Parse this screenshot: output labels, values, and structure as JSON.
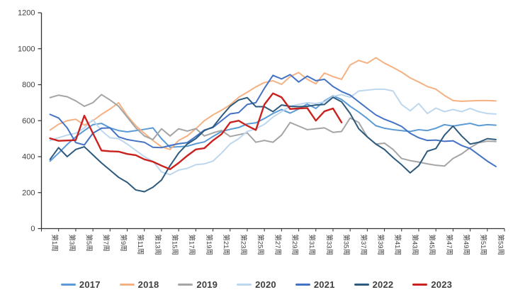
{
  "chart_data": {
    "type": "line",
    "title": "",
    "grid": "off",
    "legend_position": "bottom",
    "y_axis": {
      "min": 0,
      "max": 1200,
      "step": 200,
      "ticks": [
        0,
        200,
        400,
        600,
        800,
        1000,
        1200
      ]
    },
    "x_axis": {
      "weeks_total": 53,
      "label_every": 2,
      "tick_labels": [
        "第1周",
        "第3周",
        "第5周",
        "第7周",
        "第9周",
        "第11周",
        "第13周",
        "第15周",
        "第17周",
        "第19周",
        "第21周",
        "第23周",
        "第25周",
        "第27周",
        "第29周",
        "第31周",
        "第33周",
        "第35周",
        "第37周",
        "第39周",
        "第41周",
        "第43周",
        "第45周",
        "第47周",
        "第49周",
        "第51周",
        "第53周"
      ]
    },
    "series": [
      {
        "name": "2017",
        "color": "#5B9BD5",
        "values": [
          375,
          420,
          468,
          510,
          545,
          578,
          585,
          560,
          545,
          538,
          545,
          552,
          560,
          500,
          452,
          455,
          458,
          472,
          482,
          512,
          540,
          552,
          562,
          582,
          588,
          612,
          640,
          662,
          642,
          665,
          692,
          668,
          710,
          738,
          718,
          680,
          648,
          612,
          572,
          558,
          550,
          545,
          540,
          550,
          545,
          558,
          578,
          570,
          578,
          585,
          572,
          578,
          575
        ]
      },
      {
        "name": "2018",
        "color": "#F5B183",
        "values": [
          548,
          580,
          600,
          608,
          575,
          600,
          635,
          665,
          700,
          628,
          572,
          530,
          490,
          455,
          440,
          490,
          515,
          555,
          600,
          632,
          658,
          688,
          730,
          758,
          788,
          812,
          822,
          802,
          845,
          868,
          830,
          805,
          865,
          845,
          830,
          910,
          935,
          920,
          950,
          920,
          896,
          870,
          838,
          815,
          790,
          775,
          740,
          712,
          708,
          710,
          712,
          712,
          710
        ]
      },
      {
        "name": "2019",
        "color": "#A5A5A5",
        "values": [
          728,
          742,
          733,
          710,
          680,
          700,
          745,
          715,
          680,
          620,
          560,
          515,
          495,
          555,
          515,
          555,
          542,
          556,
          515,
          532,
          546,
          512,
          522,
          532,
          480,
          490,
          480,
          520,
          590,
          570,
          550,
          555,
          560,
          535,
          540,
          615,
          590,
          510,
          470,
          475,
          440,
          390,
          378,
          370,
          360,
          352,
          348,
          390,
          415,
          450,
          478,
          486,
          484
        ]
      },
      {
        "name": "2020",
        "color": "#BDD7EE",
        "values": [
          490,
          505,
          520,
          530,
          560,
          605,
          545,
          505,
          500,
          470,
          435,
          400,
          375,
          315,
          300,
          325,
          335,
          355,
          360,
          375,
          420,
          470,
          500,
          540,
          555,
          580,
          620,
          650,
          680,
          690,
          700,
          695,
          705,
          735,
          745,
          730,
          765,
          770,
          775,
          775,
          765,
          690,
          655,
          695,
          640,
          670,
          650,
          662,
          650,
          668,
          650,
          640,
          637
        ]
      },
      {
        "name": "2021",
        "color": "#4472C4",
        "values": [
          635,
          615,
          560,
          478,
          465,
          530,
          558,
          560,
          510,
          495,
          487,
          480,
          452,
          450,
          462,
          472,
          478,
          512,
          548,
          562,
          600,
          638,
          645,
          690,
          700,
          780,
          852,
          832,
          856,
          815,
          848,
          822,
          830,
          790,
          762,
          742,
          705,
          668,
          632,
          608,
          590,
          568,
          530,
          505,
          490,
          492,
          485,
          488,
          462,
          445,
          410,
          375,
          345
        ]
      },
      {
        "name": "2022",
        "color": "#2D5A7D",
        "values": [
          385,
          450,
          400,
          440,
          455,
          410,
          365,
          325,
          285,
          257,
          215,
          205,
          230,
          270,
          350,
          420,
          470,
          500,
          545,
          565,
          625,
          680,
          715,
          728,
          678,
          678,
          650,
          687,
          680,
          678,
          680,
          687,
          690,
          730,
          705,
          640,
          555,
          510,
          470,
          440,
          395,
          355,
          310,
          350,
          430,
          445,
          520,
          570,
          515,
          470,
          480,
          500,
          495
        ]
      },
      {
        "name": "2023",
        "color": "#C9211E",
        "values": [
          502,
          488,
          490,
          492,
          628,
          530,
          434,
          430,
          428,
          415,
          408,
          385,
          372,
          350,
          330,
          365,
          405,
          440,
          447,
          490,
          525,
          590,
          600,
          572,
          548,
          690,
          752,
          730,
          665,
          668,
          670,
          600,
          652,
          668,
          590
        ]
      }
    ]
  }
}
